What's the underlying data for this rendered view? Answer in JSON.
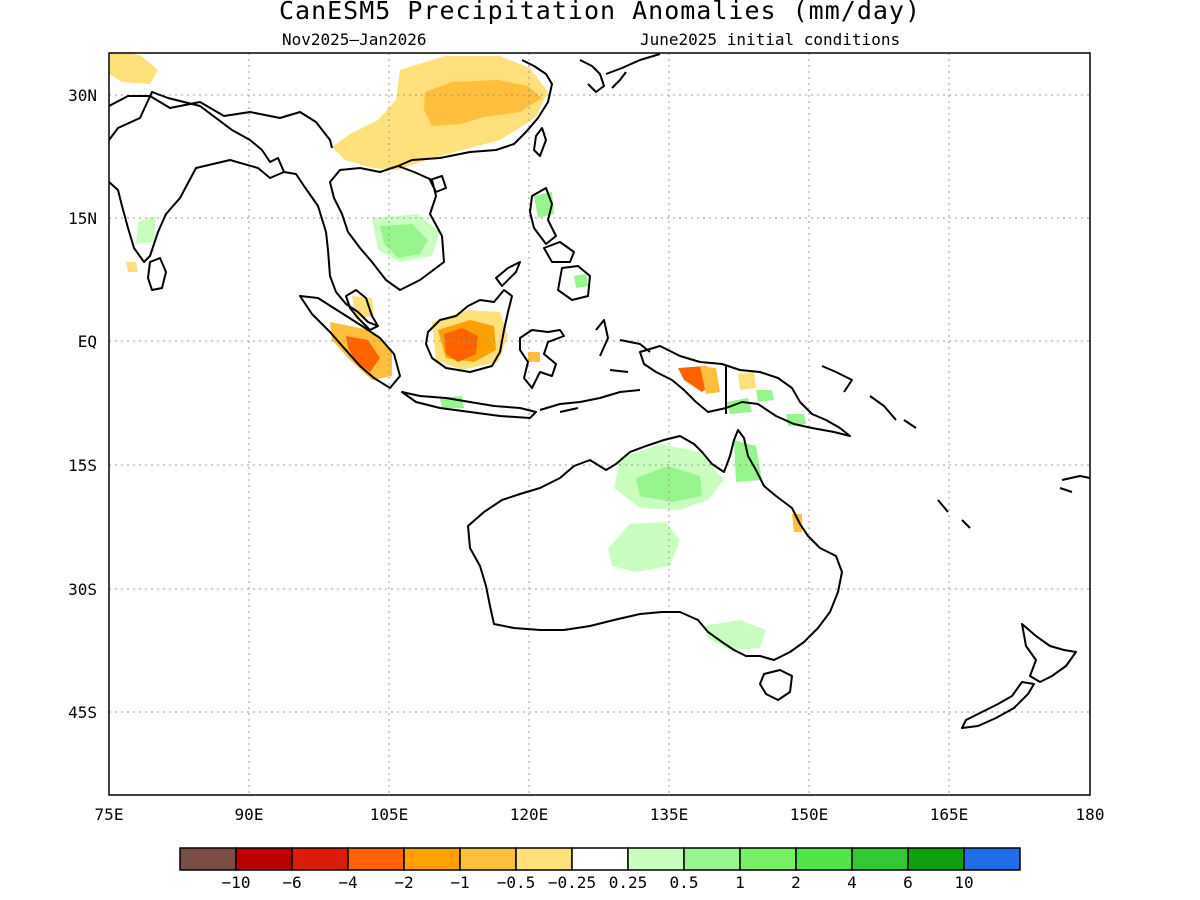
{
  "title": "CanESM5 Precipitation Anomalies (mm/day)",
  "subtitle_left": "Nov2025–Jan2026",
  "subtitle_right": "June2025 initial conditions",
  "map": {
    "lon_ticks": [
      "75E",
      "90E",
      "105E",
      "120E",
      "135E",
      "150E",
      "165E",
      "180"
    ],
    "lat_ticks": [
      "30N",
      "15N",
      "EQ",
      "15S",
      "30S",
      "45S"
    ]
  },
  "colorbar": {
    "colors": [
      "#7a4e45",
      "#b80000",
      "#dc1c0a",
      "#ff6400",
      "#ffa000",
      "#ffbe3c",
      "#ffe07a",
      "#ffffff",
      "#c8ffbe",
      "#96f58c",
      "#78f064",
      "#50e646",
      "#32c832",
      "#0fa00f",
      "#1e6ee6"
    ],
    "labels": [
      "−10",
      "−6",
      "−4",
      "−2",
      "−1",
      "−0.5",
      "−0.25",
      "0.25",
      "0.5",
      "1",
      "2",
      "4",
      "6",
      "10"
    ]
  },
  "colors": {
    "light_green": "#c8ffbe",
    "green": "#96f58c",
    "mid_green": "#78f064",
    "light_yellow": "#ffe07a",
    "orange_yellow": "#ffbe3c",
    "orange": "#ffa000",
    "dark_orange": "#ff6400"
  }
}
